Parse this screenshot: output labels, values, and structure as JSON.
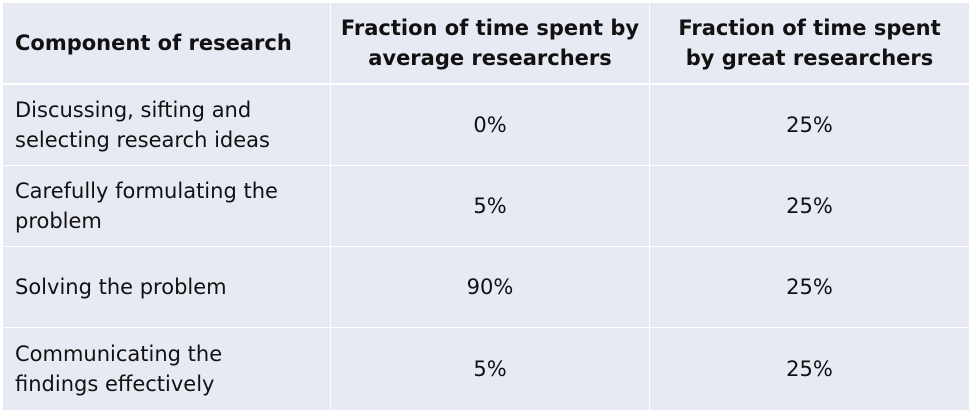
{
  "table": {
    "headers": [
      "Component of research",
      "Fraction of time spent by average researchers",
      "Fraction of time spent by great researchers"
    ],
    "rows": [
      [
        "Discussing, sifting and selecting research ideas",
        "0%",
        "25%"
      ],
      [
        "Carefully formulating the problem",
        "5%",
        "25%"
      ],
      [
        "Solving the problem",
        "90%",
        "25%"
      ],
      [
        "Communicating the findings effectively",
        "5%",
        "25%"
      ]
    ]
  },
  "colors": {
    "cell_background": "#e7e9f3",
    "grid_lines": "#ffffff",
    "text": "#111111"
  }
}
